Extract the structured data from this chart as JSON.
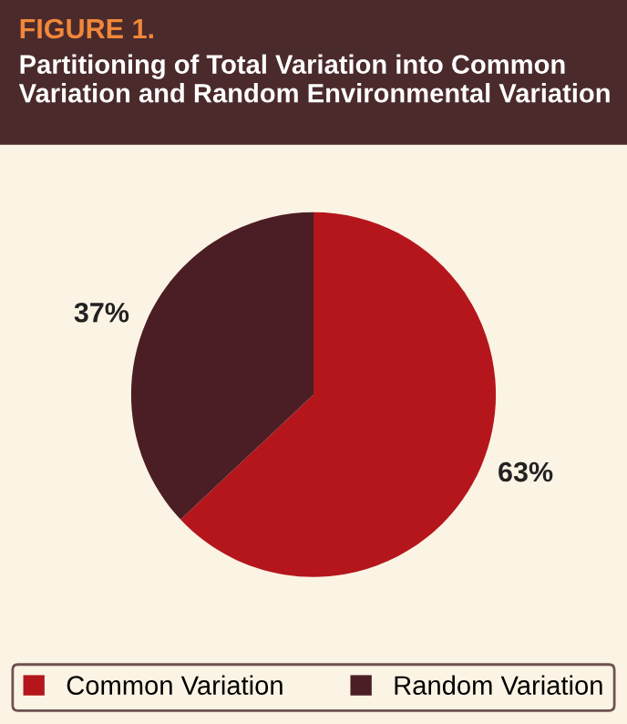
{
  "chart_data": {
    "type": "pie",
    "title": "FIGURE 1.",
    "subtitle": "Partitioning of Total Variation into Common Variation and Random Environmental Variation",
    "categories": [
      "Common Variation",
      "Random Variation"
    ],
    "values": [
      63,
      37
    ],
    "colors": [
      "#b5161c",
      "#4a1e24"
    ],
    "value_labels": [
      "63%",
      "37%"
    ],
    "legend": "bottom"
  }
}
